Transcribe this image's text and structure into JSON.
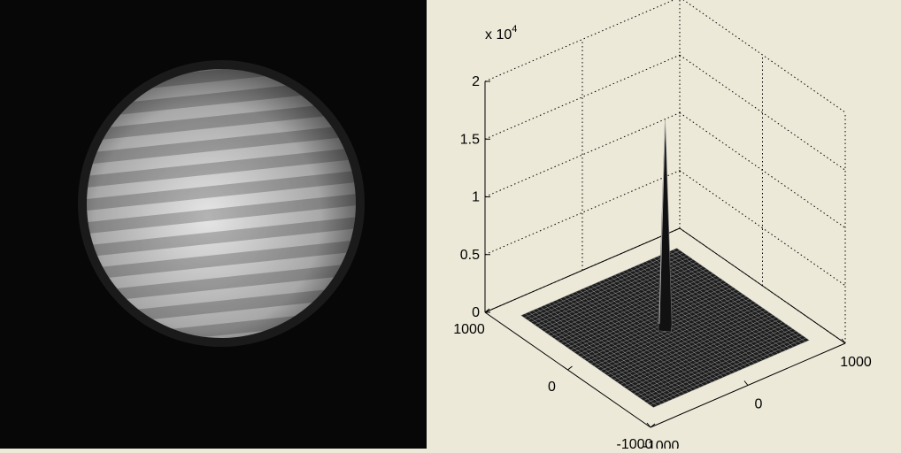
{
  "chart_data": {
    "type": "surface",
    "multiplier": {
      "base": "x 10",
      "exponent": "4"
    },
    "zlim": [
      0,
      2
    ],
    "zticks": [
      0,
      0.5,
      1,
      1.5,
      2
    ],
    "xlim": [
      -1000,
      1000
    ],
    "xticks": [
      -1000,
      0,
      1000
    ],
    "ylim": [
      -1000,
      1000
    ],
    "yticks": [
      -1000,
      0,
      1000
    ],
    "grid": true,
    "peak": {
      "x": 0,
      "y": 0,
      "z": 1.8
    }
  }
}
